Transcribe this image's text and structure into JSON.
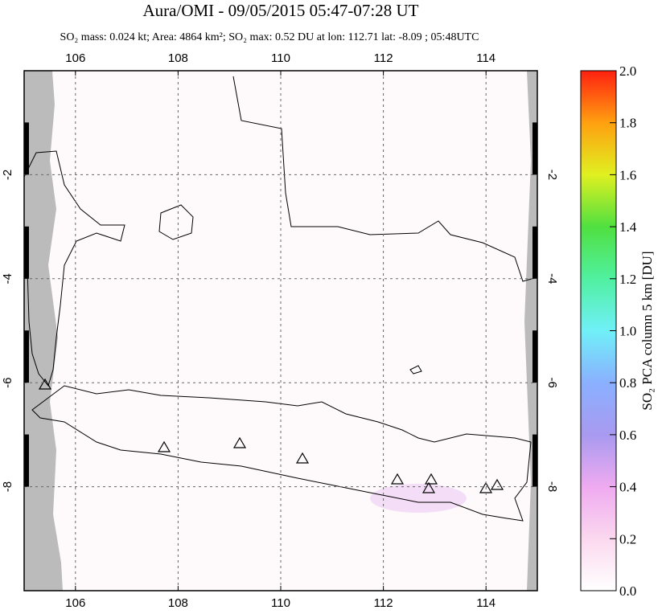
{
  "chart_data": {
    "type": "map",
    "title": "Aura/OMI - 09/05/2015 05:47-07:28 UT",
    "subtitle": "SO₂ mass: 0.024 kt; Area: 4864 km²; SO₂ max: 0.52 DU at lon: 112.71 lat: -8.09 ; 05:48UTC",
    "xlim": [
      105,
      115
    ],
    "xticks": [
      106,
      108,
      110,
      112,
      114
    ],
    "ylim": [
      -10,
      0
    ],
    "yticks": [
      -2,
      -4,
      -6,
      -8
    ],
    "grid": true,
    "colorbar": {
      "label": "SO₂ PCA column 5 km [DU]",
      "lim": [
        0,
        2
      ],
      "ticks": [
        {
          "value": 0,
          "label": "0.0"
        },
        {
          "value": 0.2,
          "label": "0.2"
        },
        {
          "value": 0.4,
          "label": "0.4"
        },
        {
          "value": 0.6,
          "label": "0.6"
        },
        {
          "value": 0.8,
          "label": "0.8"
        },
        {
          "value": 1,
          "label": "1.0"
        },
        {
          "value": 1.2,
          "label": "1.2"
        },
        {
          "value": 1.4,
          "label": "1.4"
        },
        {
          "value": 1.6,
          "label": "1.6"
        },
        {
          "value": 1.8,
          "label": "1.8"
        },
        {
          "value": 2,
          "label": "2.0"
        }
      ]
    }
  }
}
